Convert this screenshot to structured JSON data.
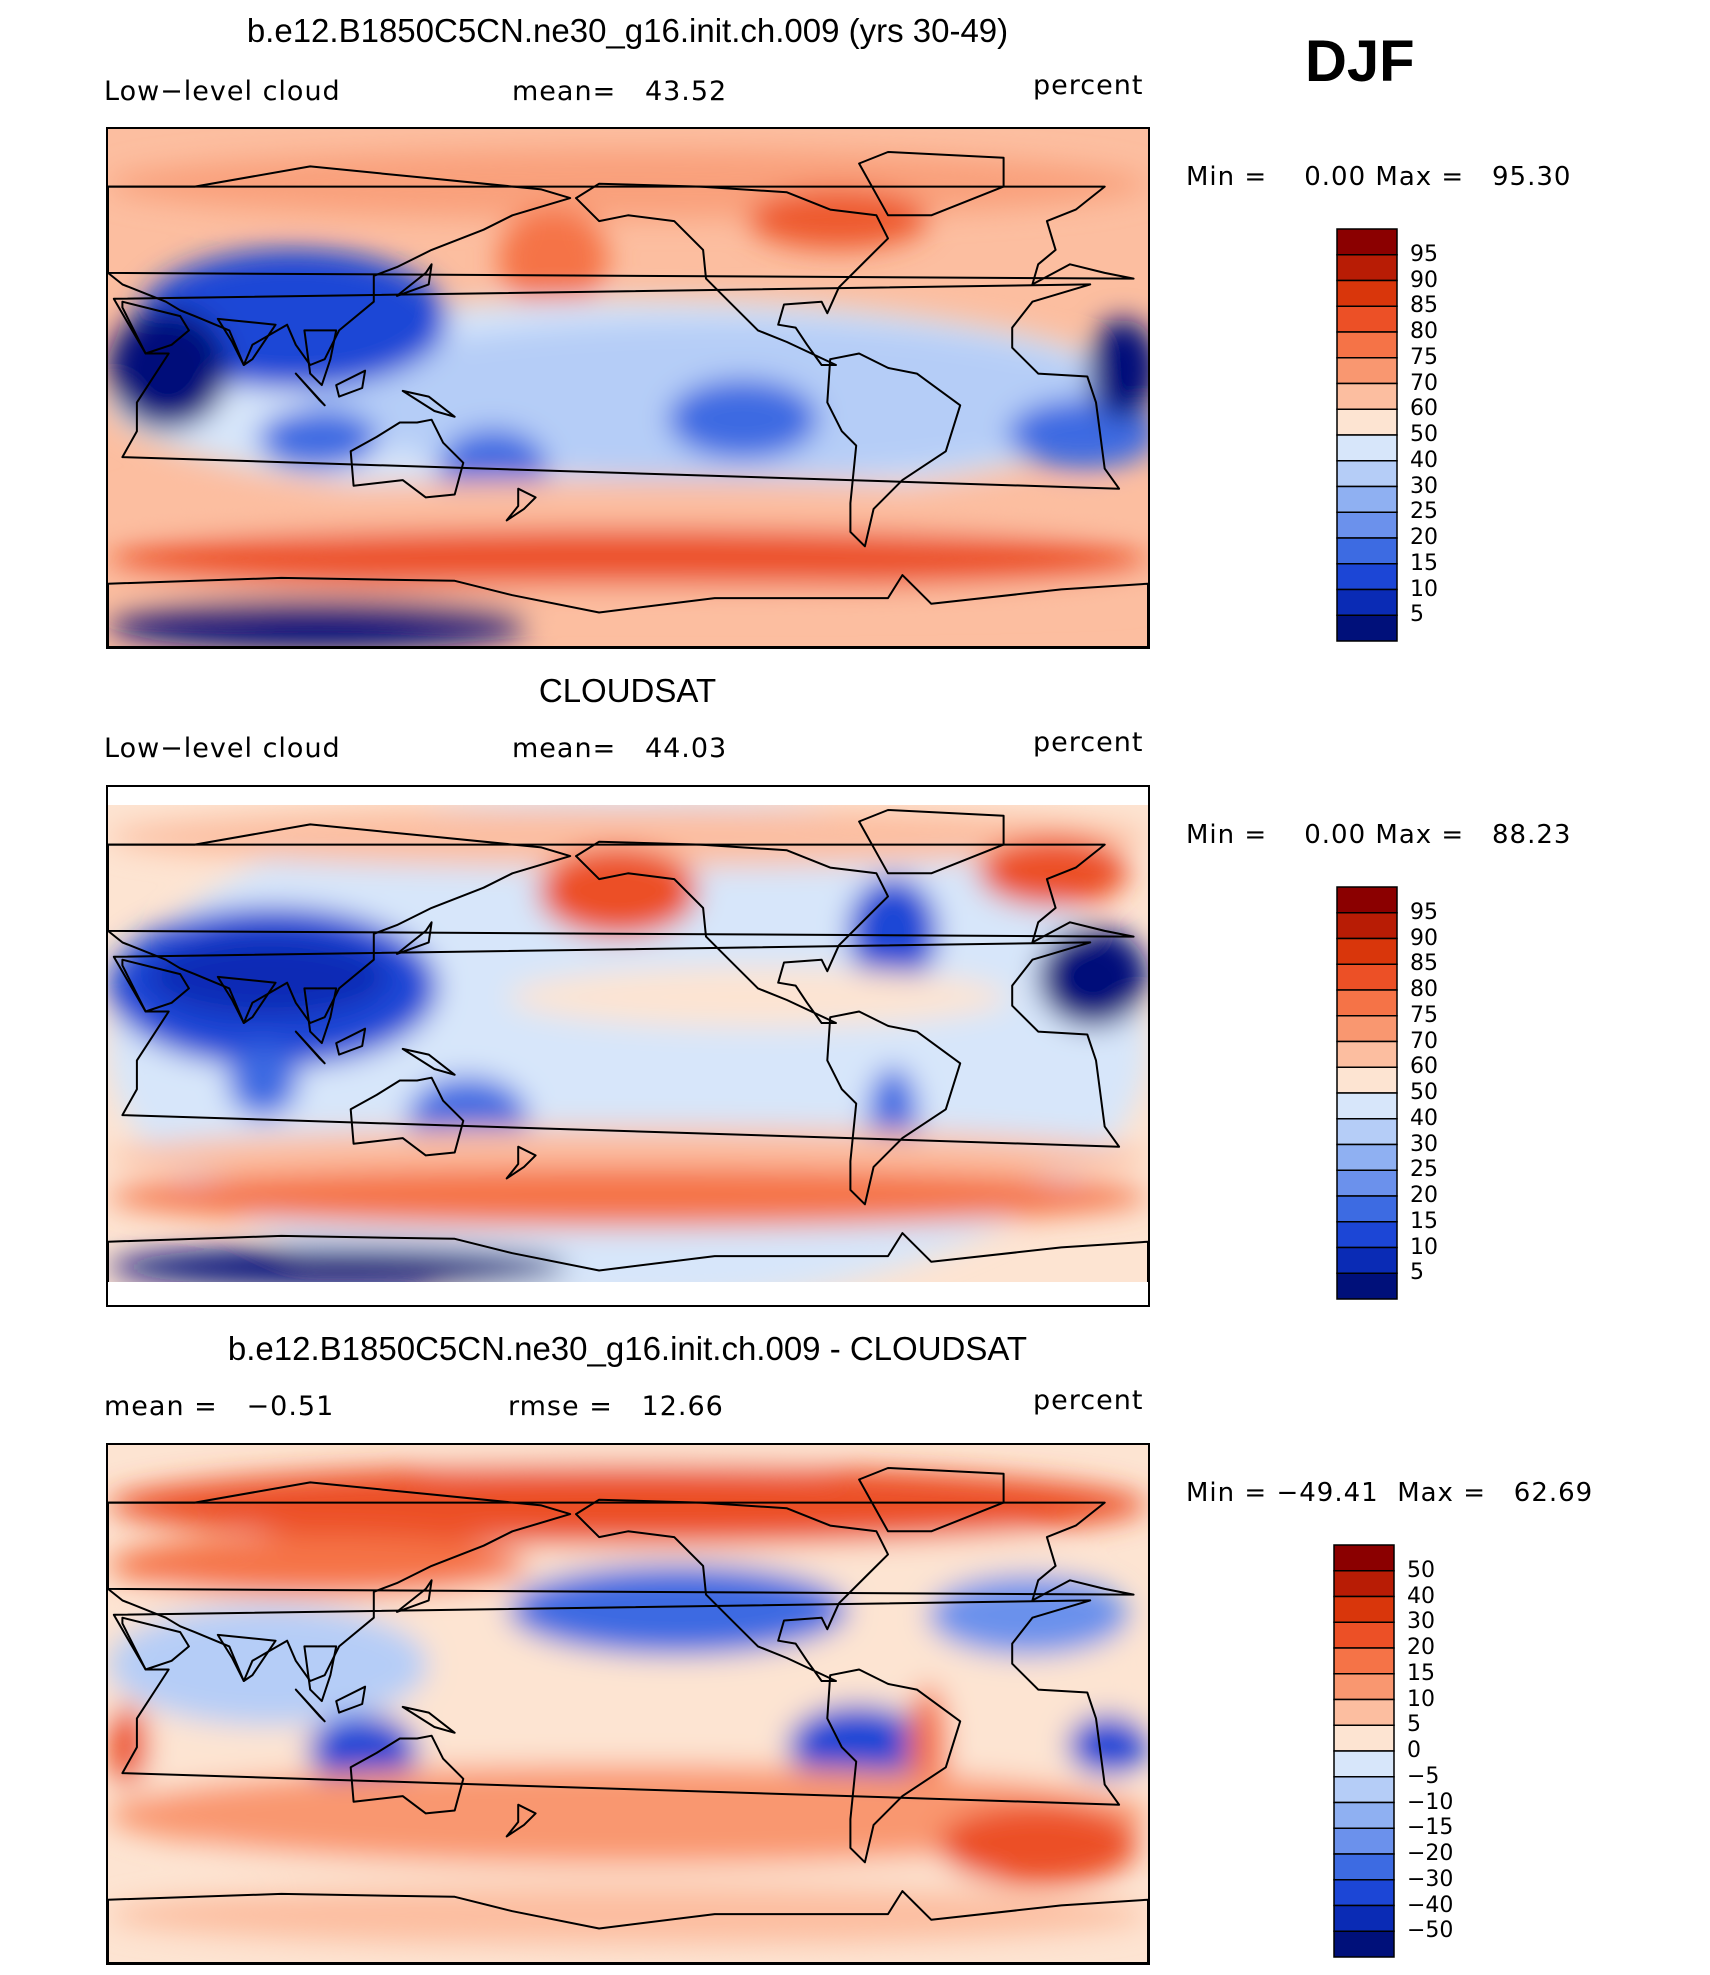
{
  "season": "DJF",
  "units": "percent",
  "panels": [
    {
      "title": "b.e12.B1850C5CN.ne30_g16.init.ch.009 (yrs 30-49)",
      "left_label": "Low−level cloud",
      "center_label": "mean=   43.52",
      "right_label": "percent",
      "minmax": "Min =    0.00 Max =   95.30",
      "colorbar": {
        "labels": [
          "95",
          "90",
          "85",
          "80",
          "75",
          "70",
          "60",
          "50",
          "40",
          "30",
          "25",
          "20",
          "15",
          "10",
          "5"
        ],
        "colors": [
          "#8b0000",
          "#b81c05",
          "#d9360b",
          "#ec5026",
          "#f57347",
          "#f99770",
          "#fcbea0",
          "#fde4d2",
          "#d7e6fa",
          "#b5cdf7",
          "#8fb0f2",
          "#6b91ec",
          "#3d6be2",
          "#1c46d6",
          "#0a2bb5",
          "#00107a"
        ]
      }
    },
    {
      "title": "CLOUDSAT",
      "left_label": "Low−level cloud",
      "center_label": "mean=   44.03",
      "right_label": "percent",
      "minmax": "Min =    0.00 Max =   88.23",
      "colorbar": {
        "labels": [
          "95",
          "90",
          "85",
          "80",
          "75",
          "70",
          "60",
          "50",
          "40",
          "30",
          "25",
          "20",
          "15",
          "10",
          "5"
        ],
        "colors": [
          "#8b0000",
          "#b81c05",
          "#d9360b",
          "#ec5026",
          "#f57347",
          "#f99770",
          "#fcbea0",
          "#fde4d2",
          "#d7e6fa",
          "#b5cdf7",
          "#8fb0f2",
          "#6b91ec",
          "#3d6be2",
          "#1c46d6",
          "#0a2bb5",
          "#00107a"
        ]
      }
    },
    {
      "title": "b.e12.B1850C5CN.ne30_g16.init.ch.009 - CLOUDSAT",
      "left_label": "mean =   −0.51",
      "center_label": "rmse =   12.66",
      "right_label": "percent",
      "minmax": "Min = −49.41  Max =   62.69",
      "colorbar": {
        "labels": [
          "50",
          "40",
          "30",
          "20",
          "15",
          "10",
          "5",
          "0",
          "−5",
          "−10",
          "−15",
          "−20",
          "−30",
          "−40",
          "−50"
        ],
        "colors": [
          "#8b0000",
          "#b81c05",
          "#d9360b",
          "#ec5026",
          "#f57347",
          "#f99770",
          "#fcbea0",
          "#fde4d2",
          "#d7e6fa",
          "#b5cdf7",
          "#8fb0f2",
          "#6b91ec",
          "#3d6be2",
          "#1c46d6",
          "#0a2bb5",
          "#00107a"
        ]
      }
    }
  ]
}
